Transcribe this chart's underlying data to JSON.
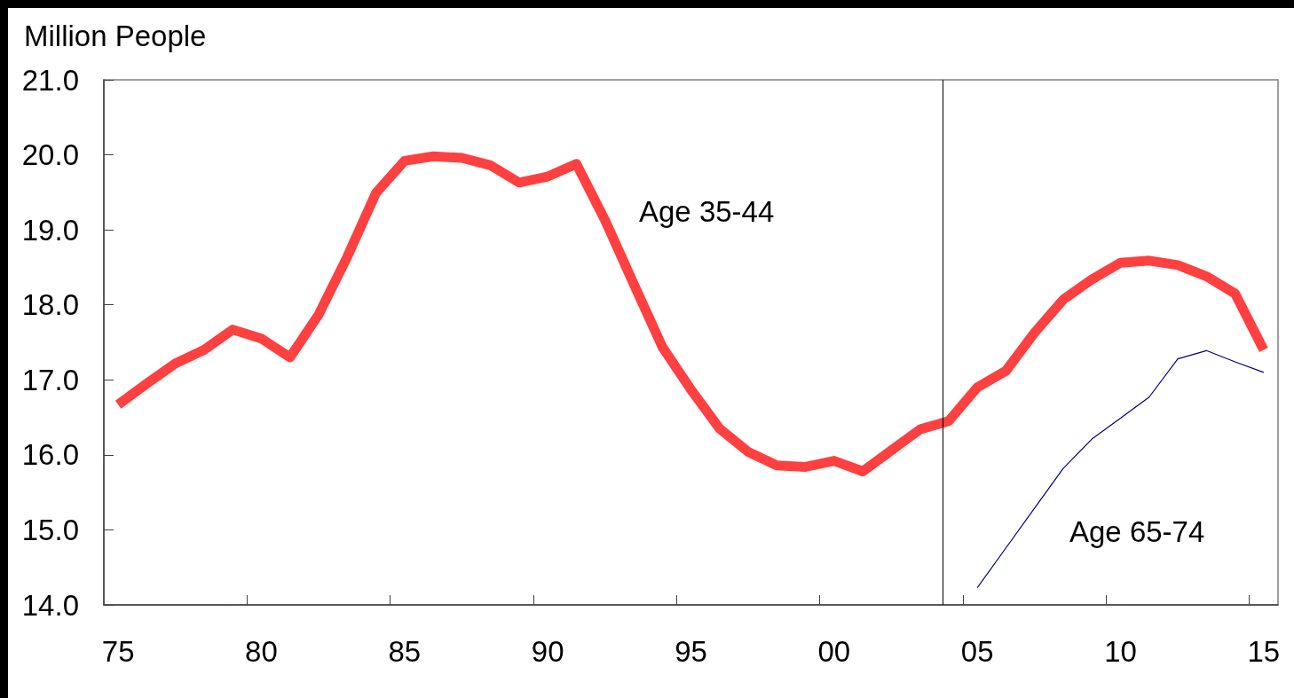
{
  "chart_data": {
    "type": "line",
    "ylabel": "Million People",
    "x": [
      1975,
      1976,
      1977,
      1978,
      1979,
      1980,
      1981,
      1982,
      1983,
      1984,
      1985,
      1986,
      1987,
      1988,
      1989,
      1990,
      1991,
      1992,
      1993,
      1994,
      1995,
      1996,
      1997,
      1998,
      1999,
      2000,
      2001,
      2002,
      2003,
      2004,
      2005,
      2006,
      2007,
      2008,
      2009,
      2010,
      2011,
      2012,
      2013,
      2014,
      2015
    ],
    "series": [
      {
        "name": "Age 35-44",
        "color": "#ff4040",
        "values": [
          16.67,
          16.95,
          17.22,
          17.4,
          17.67,
          17.55,
          17.3,
          17.87,
          18.64,
          19.49,
          19.92,
          19.98,
          19.96,
          19.86,
          19.63,
          19.71,
          19.88,
          19.13,
          18.28,
          17.44,
          16.87,
          16.35,
          16.04,
          15.86,
          15.84,
          15.92,
          15.78,
          16.06,
          16.34,
          16.45,
          16.9,
          17.12,
          17.63,
          18.07,
          18.34,
          18.56,
          18.59,
          18.53,
          18.38,
          18.15,
          17.4
        ]
      },
      {
        "name": "Age 65-74",
        "color": "#000080",
        "x": [
          2005,
          2006,
          2007,
          2008,
          2009,
          2010,
          2011,
          2012,
          2013,
          2014,
          2015
        ],
        "values": [
          14.23,
          14.76,
          15.29,
          15.82,
          16.21,
          16.49,
          16.77,
          17.28,
          17.39,
          17.24,
          17.1
        ]
      }
    ],
    "xlim": [
      1974.5,
      2015.5
    ],
    "xticks": [
      {
        "value": 1975,
        "label": "75"
      },
      {
        "value": 1979.5,
        "label": null
      },
      {
        "value": 1980,
        "label": "80"
      },
      {
        "value": 1984.5,
        "label": null
      },
      {
        "value": 1985,
        "label": "85"
      },
      {
        "value": 1989.5,
        "label": null
      },
      {
        "value": 1990,
        "label": "90"
      },
      {
        "value": 1994.5,
        "label": null
      },
      {
        "value": 1995,
        "label": "95"
      },
      {
        "value": 1999.5,
        "label": null
      },
      {
        "value": 2000,
        "label": "00"
      },
      {
        "value": 2004.5,
        "label": null
      },
      {
        "value": 2005,
        "label": "05"
      },
      {
        "value": 2009.5,
        "label": null
      },
      {
        "value": 2010,
        "label": "10"
      },
      {
        "value": 2014.5,
        "label": null
      },
      {
        "value": 2015,
        "label": "15"
      }
    ],
    "ylim": [
      14,
      21
    ],
    "yticks": [
      {
        "value": 14,
        "label": "14.0"
      },
      {
        "value": 15,
        "label": "15.0"
      },
      {
        "value": 16,
        "label": "16.0"
      },
      {
        "value": 17,
        "label": "17.0"
      },
      {
        "value": 18,
        "label": "18.0"
      },
      {
        "value": 19,
        "label": "19.0"
      },
      {
        "value": 20,
        "label": "20.0"
      },
      {
        "value": 21,
        "label": "21.0"
      }
    ],
    "ref_lines": [
      {
        "axis": "x",
        "value": 2003.8,
        "color": "#000000"
      }
    ],
    "grid": false,
    "legend": false,
    "marker": "none",
    "line_style": "solid"
  }
}
